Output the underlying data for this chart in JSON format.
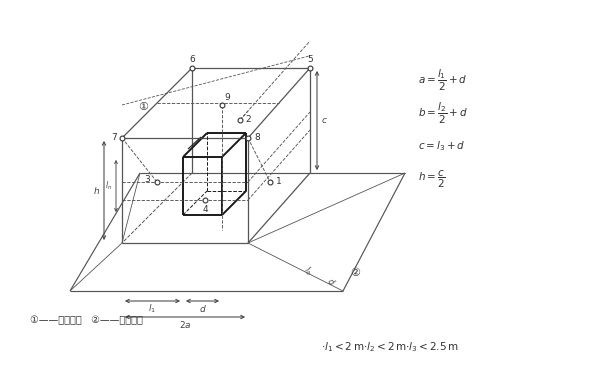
{
  "bg_color": "#ffffff",
  "line_color": "#555555",
  "dim_color": "#444444",
  "text_color": "#333333",
  "label1": "①——发动机侧",
  "label2": "②——发电机侧",
  "formulas": [
    "a=\\frac{l_1}{2}+d",
    "b=\\frac{l_2}{2}+d",
    "c=l_3+d",
    "h=\\frac{c}{2}"
  ],
  "bottom_note": "\\cdot l_1<2\\,\\mathrm{m}\\cdot l_2<2\\,\\mathrm{m}\\cdot l_3<2.5\\,\\mathrm{m}"
}
